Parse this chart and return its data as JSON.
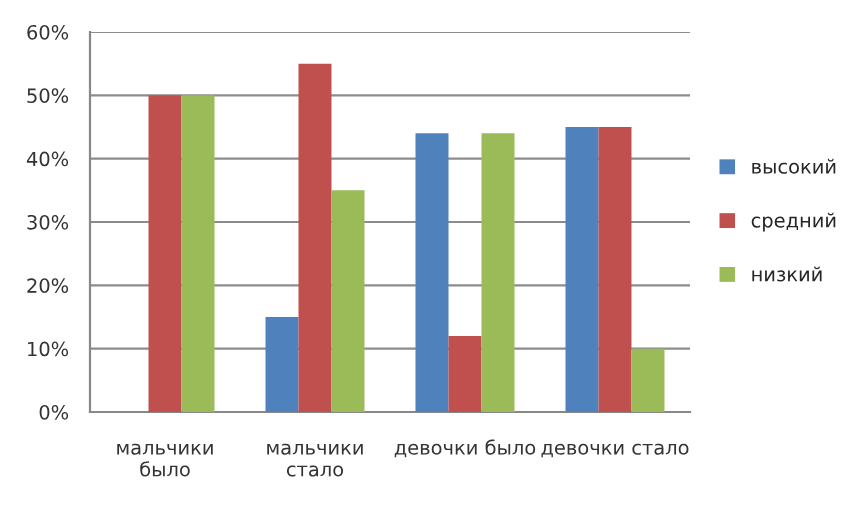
{
  "chart_data": {
    "type": "bar",
    "categories": [
      "мальчики\nбыло",
      "мальчики\nстало",
      "девочки было",
      "девочки стало"
    ],
    "series": [
      {
        "name": "высокий",
        "color": "#4f81bd",
        "values": [
          null,
          15,
          44,
          45
        ]
      },
      {
        "name": "средний",
        "color": "#c0504d",
        "values": [
          50,
          55,
          12,
          45
        ]
      },
      {
        "name": "низкий",
        "color": "#9bbb59",
        "values": [
          50,
          35,
          44,
          10
        ]
      }
    ],
    "ylim": [
      0,
      60
    ],
    "yticks": [
      {
        "value": 0,
        "label": "0%"
      },
      {
        "value": 10,
        "label": "10%"
      },
      {
        "value": 20,
        "label": "20%"
      },
      {
        "value": 30,
        "label": "30%"
      },
      {
        "value": 40,
        "label": "40%"
      },
      {
        "value": 50,
        "label": "50%"
      },
      {
        "value": 60,
        "label": "60%"
      }
    ],
    "grid": "y",
    "legend": "right"
  }
}
